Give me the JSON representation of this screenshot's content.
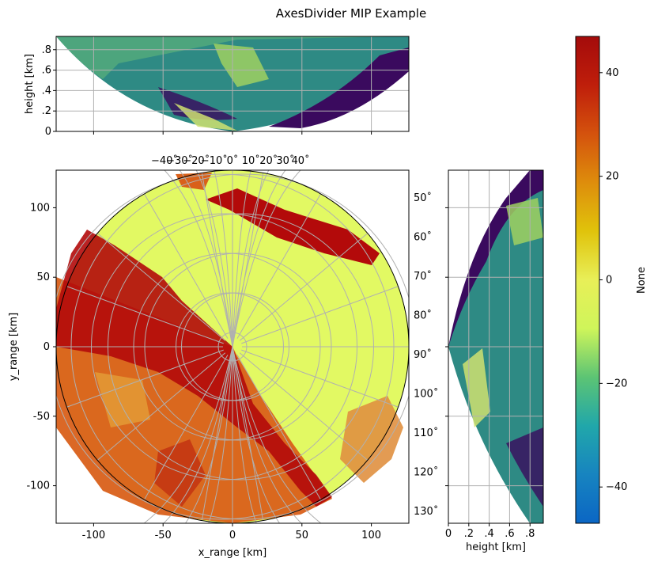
{
  "title": "AxesDivider MIP Example",
  "colors": {
    "background": "#ffffff",
    "plot_background": "#e2f963",
    "grid": "#b0b0b0",
    "precip_dark": "#b30a0a",
    "precip_mid": "#d9601a",
    "low": "#3a0a5e"
  },
  "chart_data": [
    {
      "id": "main-ppi",
      "type": "heatmap",
      "xlabel": "x_range [km]",
      "ylabel": "y_range [km]",
      "xlim": [
        -127,
        127
      ],
      "ylim": [
        -127,
        127
      ],
      "xticks": [
        -100,
        -50,
        0,
        50,
        100
      ],
      "xtick_labels": [
        "-100",
        "-50",
        "0",
        "50",
        "100"
      ],
      "yticks": [
        100,
        50,
        0,
        -50,
        -100
      ],
      "ytick_labels": [
        "100",
        "50",
        "0",
        "-50",
        "-100"
      ],
      "grid": true,
      "grid_type": "lat-lon",
      "longitudes": [
        -40,
        -30,
        -20,
        -10,
        0,
        10,
        20,
        30,
        40
      ],
      "longitude_labels": [
        "−40˚",
        "−30˚",
        "−20˚",
        "−10˚",
        "0˚",
        "10˚",
        "20˚",
        "30˚",
        "40˚"
      ],
      "latitudes": [
        50,
        60,
        70,
        80,
        90,
        100,
        110,
        120,
        130
      ],
      "latitude_labels": [
        "50˚",
        "60˚",
        "70˚",
        "80˚",
        "90˚",
        "100˚",
        "110˚",
        "120˚",
        "130˚"
      ],
      "max_range_km": 127
    },
    {
      "id": "top-mip",
      "type": "heatmap",
      "ylabel": "height [km]",
      "xlim": [
        -127,
        127
      ],
      "ylim": [
        0,
        0.93
      ],
      "yticks": [
        0,
        0.2,
        0.4,
        0.6,
        0.8
      ],
      "ytick_labels": [
        "0",
        ".2",
        ".4",
        ".6",
        ".8"
      ],
      "grid": true
    },
    {
      "id": "right-mip",
      "type": "heatmap",
      "xlabel": "height [km]",
      "xlim": [
        0,
        0.93
      ],
      "ylim": [
        -127,
        127
      ],
      "xticks": [
        0,
        0.2,
        0.4,
        0.6,
        0.8
      ],
      "xtick_labels": [
        "0",
        ".2",
        ".4",
        ".6",
        ".8"
      ],
      "grid": true
    },
    {
      "id": "colorbar",
      "type": "colorbar",
      "label": "None",
      "range": [
        -47,
        47
      ],
      "ticks": [
        40,
        20,
        0,
        -20,
        -40
      ],
      "tick_labels": [
        "40",
        "20",
        "0",
        "−20",
        "−40"
      ],
      "colormap": [
        "#0b66c4",
        "#1784c0",
        "#21a7aa",
        "#5cc474",
        "#cff55a",
        "#e8ef58",
        "#e0c30b",
        "#de8d0c",
        "#d4520d",
        "#bf1e0b",
        "#a40b0b"
      ]
    }
  ]
}
